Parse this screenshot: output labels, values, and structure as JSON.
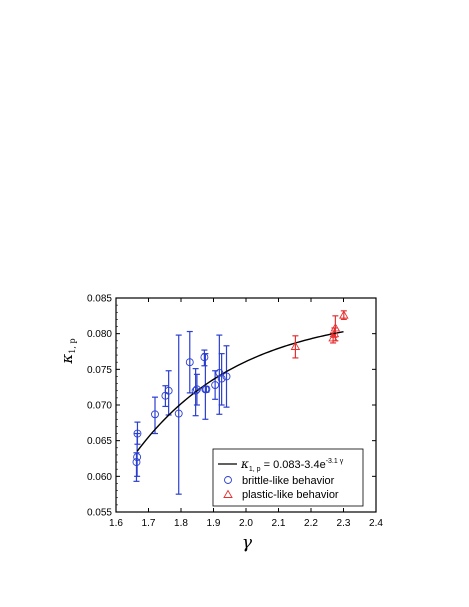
{
  "chart_data": {
    "type": "scatter",
    "xlabel": "γ",
    "ylabel": "κ",
    "ylabel_subscript": "1, p",
    "xlim": [
      1.6,
      2.4
    ],
    "ylim": [
      0.055,
      0.085
    ],
    "xticks": [
      "1.6",
      "1.7",
      "1.8",
      "1.9",
      "2.0",
      "2.1",
      "2.2",
      "2.3",
      "2.4"
    ],
    "yticks": [
      "0.055",
      "0.060",
      "0.065",
      "0.070",
      "0.075",
      "0.080",
      "0.085"
    ],
    "grid": false,
    "legend_position": "bottom-right",
    "series": [
      {
        "name": "brittle-like behavior",
        "marker": "circle",
        "color": "#2b3fd0",
        "points": [
          {
            "x": 1.663,
            "y": 0.062,
            "lo": 0.0593,
            "hi": 0.0633
          },
          {
            "x": 1.665,
            "y": 0.0627,
            "lo": 0.06,
            "hi": 0.066
          },
          {
            "x": 1.666,
            "y": 0.066,
            "lo": 0.0645,
            "hi": 0.0676
          },
          {
            "x": 1.72,
            "y": 0.0687,
            "lo": 0.066,
            "hi": 0.0711
          },
          {
            "x": 1.752,
            "y": 0.0713,
            "lo": 0.0698,
            "hi": 0.0727
          },
          {
            "x": 1.762,
            "y": 0.072,
            "lo": 0.0686,
            "hi": 0.0748
          },
          {
            "x": 1.793,
            "y": 0.0688,
            "lo": 0.0575,
            "hi": 0.0798
          },
          {
            "x": 1.827,
            "y": 0.076,
            "lo": 0.0717,
            "hi": 0.0803
          },
          {
            "x": 1.845,
            "y": 0.072,
            "lo": 0.0685,
            "hi": 0.0751
          },
          {
            "x": 1.849,
            "y": 0.0722,
            "lo": 0.07,
            "hi": 0.0743
          },
          {
            "x": 1.872,
            "y": 0.0767,
            "lo": 0.0755,
            "hi": 0.0777
          },
          {
            "x": 1.875,
            "y": 0.0722,
            "lo": 0.068,
            "hi": 0.0772
          },
          {
            "x": 1.878,
            "y": 0.0722,
            "lo": 0.0718,
            "hi": 0.0726
          },
          {
            "x": 1.905,
            "y": 0.0728,
            "lo": 0.0708,
            "hi": 0.0748
          },
          {
            "x": 1.918,
            "y": 0.0745,
            "lo": 0.0687,
            "hi": 0.0798
          },
          {
            "x": 1.925,
            "y": 0.0737,
            "lo": 0.07,
            "hi": 0.0772
          },
          {
            "x": 1.94,
            "y": 0.074,
            "lo": 0.0697,
            "hi": 0.0783
          }
        ]
      },
      {
        "name": "plastic-like behavior",
        "marker": "triangle",
        "color": "#e53030",
        "points": [
          {
            "x": 2.152,
            "y": 0.0782,
            "lo": 0.0766,
            "hi": 0.0797
          },
          {
            "x": 2.268,
            "y": 0.0794,
            "lo": 0.0787,
            "hi": 0.0801
          },
          {
            "x": 2.272,
            "y": 0.08,
            "lo": 0.0795,
            "hi": 0.0808
          },
          {
            "x": 2.275,
            "y": 0.0808,
            "lo": 0.079,
            "hi": 0.0825
          },
          {
            "x": 2.301,
            "y": 0.0826,
            "lo": 0.082,
            "hi": 0.0832
          }
        ]
      }
    ],
    "fit": {
      "name_main": "κ",
      "name_sub": "1, p",
      "name_eq": " = 0.083-3.4e",
      "name_sup": "-3.1 γ",
      "a": 0.083,
      "b": 3.4,
      "c": 3.1,
      "x_range": [
        1.665,
        2.3
      ],
      "color": "#000000"
    }
  }
}
